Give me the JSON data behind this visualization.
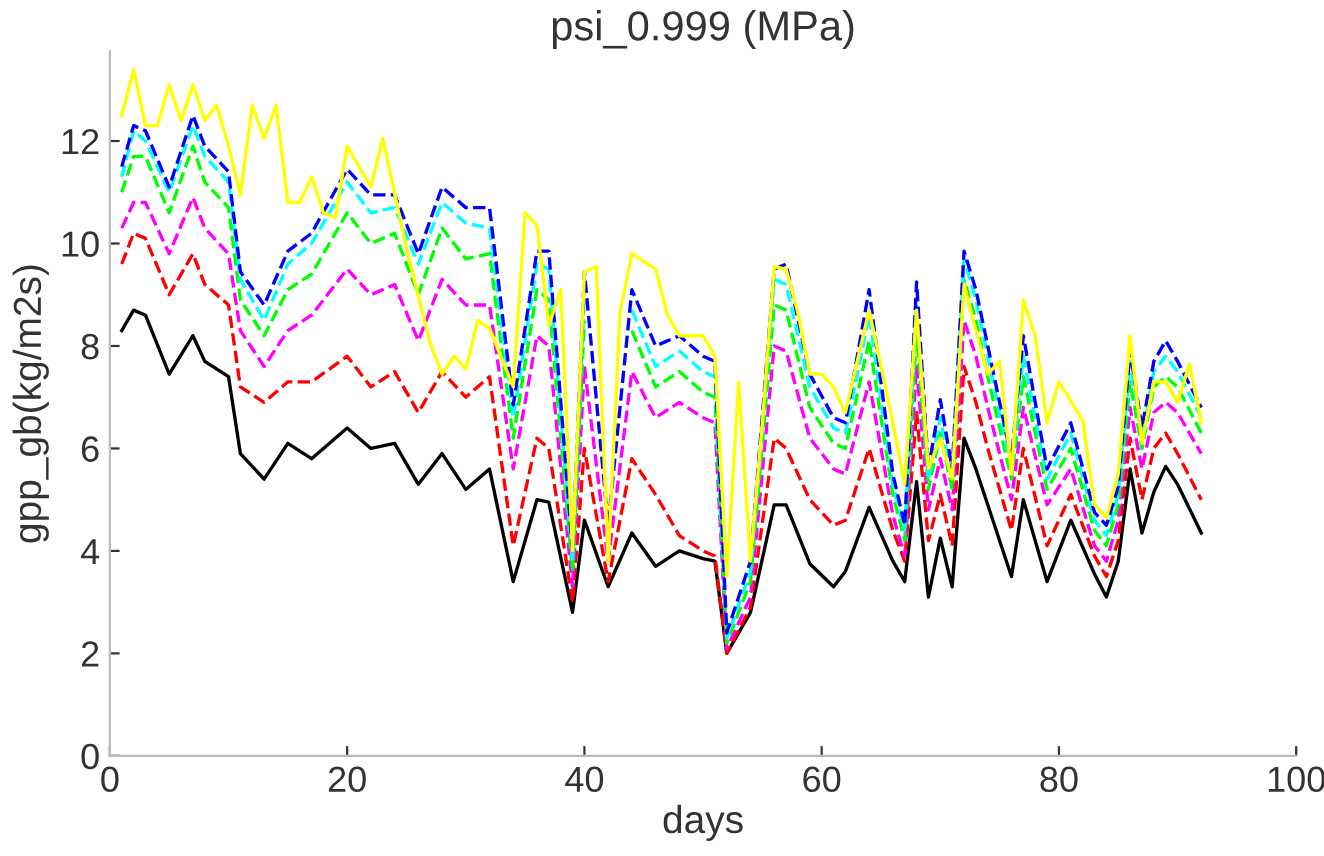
{
  "chart_data": {
    "type": "line",
    "title": "psi_0.999 (MPa)",
    "xlabel": "days",
    "ylabel": "gpp_gb(kg/m2s)",
    "xlim": [
      0,
      100
    ],
    "xticks": [
      0,
      20,
      40,
      60,
      80,
      100
    ],
    "ylim": [
      0,
      13.75
    ],
    "yticks": [
      0,
      2,
      4,
      6,
      8,
      10,
      12
    ],
    "grid": false,
    "legend": false,
    "marker": "none",
    "x": [
      1,
      2,
      3,
      5,
      7,
      8,
      10,
      11,
      13,
      15,
      17,
      20,
      22,
      24,
      26,
      28,
      30,
      32,
      34,
      36,
      37,
      39,
      40,
      42,
      44,
      46,
      48,
      50,
      51,
      52,
      54,
      56,
      57,
      59,
      61,
      62,
      64,
      66,
      67,
      68,
      69,
      70,
      71,
      72,
      73,
      74,
      76,
      77,
      79,
      81,
      83,
      84,
      85,
      86,
      87,
      88,
      89,
      90,
      92
    ],
    "series": [
      {
        "color": "#000000",
        "line_style": "solid",
        "values": [
          8.3,
          8.7,
          8.6,
          7.45,
          8.2,
          7.7,
          7.4,
          5.9,
          5.4,
          6.1,
          5.8,
          6.4,
          6.0,
          6.1,
          5.3,
          5.9,
          5.2,
          5.6,
          3.4,
          5.0,
          4.95,
          2.8,
          4.6,
          3.3,
          4.35,
          3.7,
          4.0,
          3.85,
          3.8,
          2.0,
          2.8,
          4.9,
          4.9,
          3.75,
          3.3,
          3.6,
          4.85,
          3.8,
          3.4,
          5.35,
          3.1,
          4.25,
          3.3,
          6.2,
          5.6,
          4.9,
          3.5,
          5.0,
          3.4,
          4.6,
          3.55,
          3.1,
          3.8,
          5.6,
          4.35,
          5.15,
          5.65,
          5.3,
          4.35
        ]
      },
      {
        "color": "#ff0000",
        "line_style": "dashed",
        "values": [
          9.6,
          10.2,
          10.1,
          9.0,
          9.8,
          9.2,
          8.8,
          7.2,
          6.9,
          7.3,
          7.3,
          7.8,
          7.2,
          7.5,
          6.7,
          7.5,
          7.0,
          7.4,
          4.1,
          6.2,
          6.0,
          3.0,
          6.0,
          3.4,
          5.8,
          5.1,
          4.3,
          4.0,
          3.9,
          2.0,
          2.9,
          6.2,
          6.0,
          5.0,
          4.5,
          4.6,
          6.0,
          4.4,
          3.8,
          6.7,
          4.2,
          5.1,
          4.1,
          7.6,
          6.9,
          6.0,
          4.4,
          6.0,
          4.1,
          5.1,
          3.9,
          3.5,
          4.2,
          6.2,
          5.0,
          6.0,
          6.3,
          5.9,
          5.0
        ]
      },
      {
        "color": "#ff00ff",
        "line_style": "dashed",
        "values": [
          10.3,
          10.8,
          10.8,
          9.8,
          10.9,
          10.3,
          9.8,
          8.3,
          7.6,
          8.3,
          8.6,
          9.5,
          9.0,
          9.2,
          8.1,
          9.3,
          8.8,
          8.8,
          5.6,
          8.2,
          8.0,
          3.3,
          7.6,
          3.8,
          7.5,
          6.6,
          6.9,
          6.6,
          6.5,
          2.1,
          3.1,
          8.0,
          7.9,
          6.2,
          5.6,
          5.5,
          7.3,
          4.7,
          3.9,
          7.6,
          4.8,
          5.8,
          4.8,
          8.5,
          7.8,
          6.8,
          5.0,
          6.8,
          4.9,
          5.6,
          4.1,
          3.8,
          4.6,
          6.8,
          5.6,
          6.7,
          6.9,
          6.7,
          5.9
        ]
      },
      {
        "color": "#00ff00",
        "line_style": "dashed",
        "values": [
          11.0,
          11.7,
          11.7,
          10.6,
          11.9,
          11.2,
          10.7,
          8.9,
          8.2,
          9.1,
          9.4,
          10.6,
          10.0,
          10.2,
          9.0,
          10.3,
          9.7,
          9.8,
          6.2,
          9.1,
          8.9,
          3.6,
          8.5,
          null,
          8.3,
          7.2,
          7.5,
          7.1,
          7.0,
          2.2,
          3.4,
          8.8,
          8.7,
          6.8,
          6.1,
          6.0,
          8.1,
          5.1,
          4.2,
          8.3,
          5.2,
          6.3,
          5.2,
          9.3,
          8.5,
          7.4,
          5.4,
          7.4,
          5.2,
          6.0,
          4.4,
          4.1,
          4.9,
          7.3,
          6.0,
          7.2,
          7.4,
          7.2,
          6.3
        ]
      },
      {
        "color": "#00ffff",
        "line_style": "dashed",
        "values": [
          11.3,
          12.2,
          12.0,
          11.0,
          12.3,
          11.7,
          11.2,
          9.3,
          8.5,
          9.6,
          10.0,
          11.2,
          10.6,
          10.7,
          9.6,
          10.8,
          10.4,
          10.3,
          6.6,
          9.6,
          9.5,
          3.8,
          9.0,
          null,
          8.7,
          7.6,
          7.9,
          7.5,
          7.4,
          2.3,
          3.6,
          9.3,
          9.2,
          7.2,
          6.4,
          6.3,
          8.6,
          5.3,
          4.4,
          8.8,
          5.4,
          6.6,
          5.4,
          9.7,
          8.9,
          7.8,
          5.6,
          7.8,
          5.4,
          6.3,
          4.6,
          4.3,
          5.1,
          7.7,
          6.2,
          7.5,
          7.8,
          7.5,
          6.6
        ]
      },
      {
        "color": "#0000ff",
        "line_style": "dashed",
        "values": [
          11.5,
          12.3,
          12.2,
          11.1,
          12.5,
          11.9,
          11.4,
          9.45,
          8.8,
          9.85,
          10.2,
          11.45,
          10.95,
          10.95,
          9.8,
          11.1,
          10.7,
          10.7,
          6.85,
          9.85,
          9.85,
          4.0,
          9.45,
          4.5,
          9.1,
          8.0,
          8.2,
          7.8,
          7.7,
          2.4,
          3.8,
          9.5,
          9.6,
          7.45,
          6.6,
          6.5,
          9.1,
          5.5,
          4.5,
          9.25,
          5.6,
          6.95,
          5.6,
          9.85,
          9.1,
          8.0,
          5.8,
          8.2,
          5.6,
          6.5,
          4.75,
          4.5,
          5.25,
          7.9,
          6.4,
          7.7,
          8.1,
          7.7,
          6.8
        ]
      },
      {
        "color": "#ffff00",
        "line_style": "solid",
        "x": [
          1,
          2,
          3,
          4,
          5,
          6,
          7,
          8,
          9,
          10,
          11,
          12,
          13,
          14,
          15,
          16,
          17,
          18,
          19,
          20,
          22,
          23,
          25,
          27,
          28,
          29,
          30,
          31,
          32,
          34,
          35,
          36,
          37,
          38,
          39,
          40,
          41,
          42,
          43,
          44,
          46,
          47,
          48,
          50,
          51,
          52,
          53,
          54,
          55,
          56,
          57,
          58,
          59,
          60,
          61,
          62,
          64,
          66,
          67,
          68,
          69,
          70,
          71,
          72,
          73,
          74,
          75,
          76,
          77,
          78,
          79,
          80,
          82,
          83,
          84,
          85,
          86,
          87,
          88,
          89,
          90,
          91,
          92
        ],
        "values": [
          12.5,
          13.4,
          12.3,
          12.3,
          13.1,
          12.4,
          13.1,
          12.4,
          12.7,
          11.9,
          10.95,
          12.7,
          12.05,
          12.7,
          10.8,
          10.8,
          11.3,
          10.6,
          10.5,
          11.9,
          11.1,
          12.05,
          9.9,
          8.05,
          7.45,
          7.8,
          7.55,
          8.5,
          8.35,
          7.2,
          10.6,
          10.35,
          8.4,
          9.1,
          4.0,
          9.45,
          9.55,
          3.8,
          8.65,
          9.8,
          9.5,
          8.6,
          8.2,
          8.2,
          7.8,
          3.5,
          7.3,
          3.8,
          6.5,
          9.55,
          9.5,
          8.65,
          7.45,
          7.45,
          7.2,
          6.7,
          8.7,
          6.5,
          5.3,
          8.7,
          5.6,
          6.2,
          5.4,
          9.2,
          8.3,
          7.45,
          7.7,
          5.5,
          8.9,
          8.2,
          6.5,
          7.3,
          6.55,
          4.9,
          4.65,
          5.5,
          8.2,
          6.1,
          7.3,
          7.3,
          6.9,
          7.65,
          6.5
        ]
      }
    ]
  }
}
